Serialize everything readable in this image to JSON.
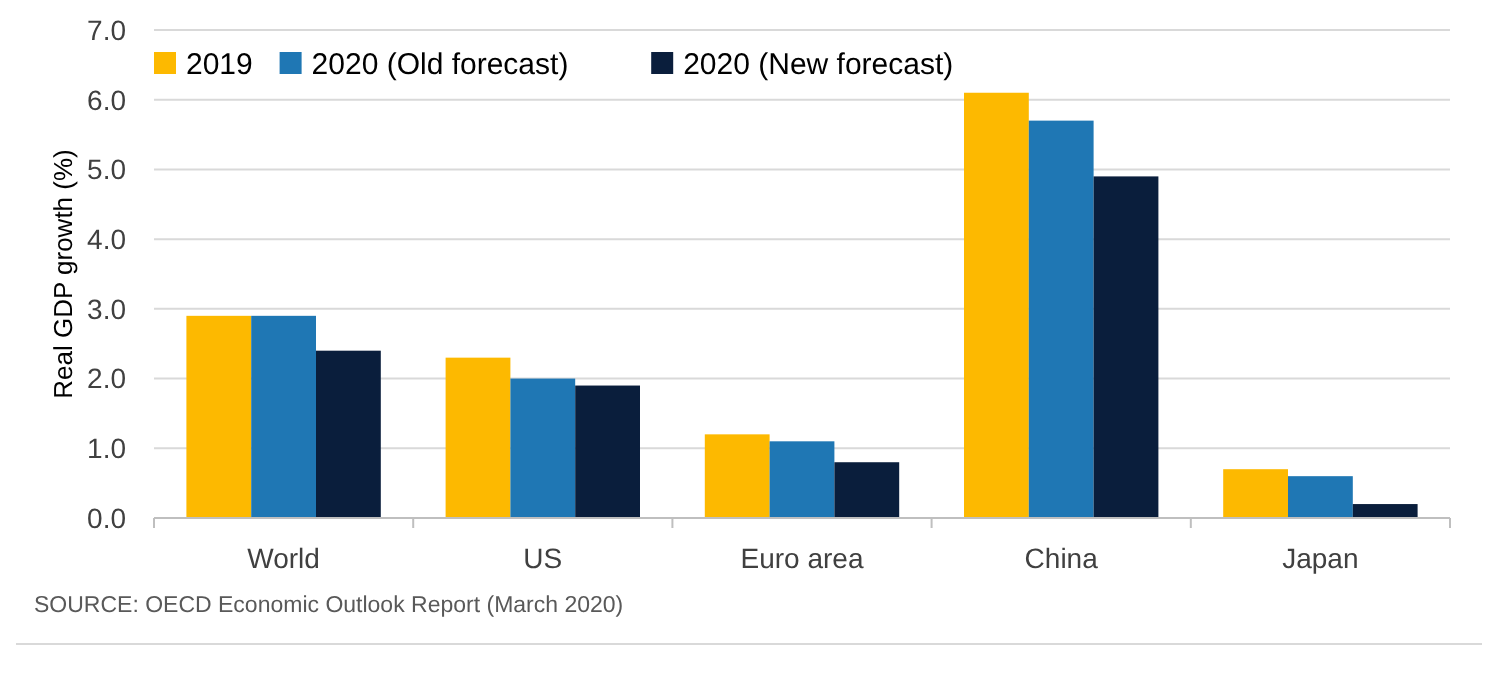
{
  "chart_data": {
    "type": "bar",
    "ylabel": "Real GDP growth (%)",
    "categories": [
      "World",
      "US",
      "Euro area",
      "China",
      "Japan"
    ],
    "series": [
      {
        "name": "2019",
        "color": "#fdb900",
        "values": [
          2.9,
          2.3,
          1.2,
          6.1,
          0.7
        ]
      },
      {
        "name": "2020 (Old forecast)",
        "color": "#1f77b4",
        "values": [
          2.9,
          2.0,
          1.1,
          5.7,
          0.6
        ]
      },
      {
        "name": "2020 (New forecast)",
        "color": "#0a1e3c",
        "values": [
          2.4,
          1.9,
          0.8,
          4.9,
          0.2
        ]
      }
    ],
    "ylim": [
      0,
      7
    ],
    "yticks": [
      {
        "value": 0,
        "label": "0.0"
      },
      {
        "value": 1,
        "label": "1.0"
      },
      {
        "value": 2,
        "label": "2.0"
      },
      {
        "value": 3,
        "label": "3.0"
      },
      {
        "value": 4,
        "label": "4.0"
      },
      {
        "value": 5,
        "label": "5.0"
      },
      {
        "value": 6,
        "label": "6.0"
      },
      {
        "value": 7,
        "label": "7.0"
      }
    ],
    "grid": "y",
    "legend": "top left",
    "annotations": [
      "SOURCE: OECD Economic Outlook Report (March 2020)"
    ]
  }
}
